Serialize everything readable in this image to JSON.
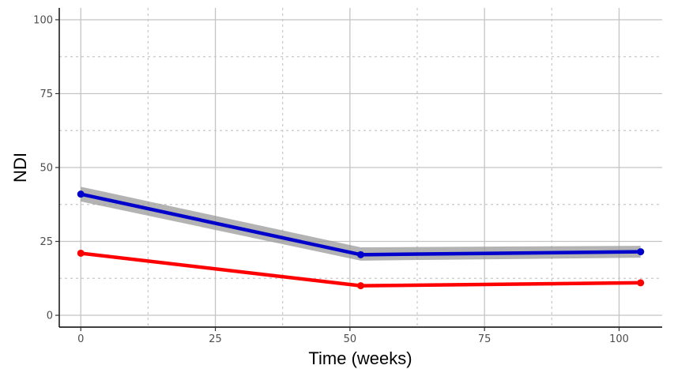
{
  "chart_data": {
    "type": "line",
    "title": "",
    "xlabel": "Time (weeks)",
    "ylabel": "NDI",
    "xlim": [
      -4,
      108
    ],
    "ylim": [
      -4,
      104
    ],
    "x_ticks": [
      "0",
      "25",
      "50",
      "75",
      "100"
    ],
    "y_ticks": [
      "0",
      "25",
      "50",
      "75",
      "100"
    ],
    "grid": true,
    "legend": "none",
    "series": [
      {
        "color": "#0000cc",
        "x": [
          0,
          52,
          104
        ],
        "y": [
          41,
          20.5,
          21.5
        ],
        "ci_lower": [
          38.5,
          18.5,
          19.5
        ],
        "ci_upper": [
          43.5,
          23,
          23.5
        ],
        "ci_color": "#9a9a9a"
      },
      {
        "color": "#ff0000",
        "x": [
          0,
          52,
          104
        ],
        "y": [
          21,
          10,
          11
        ]
      }
    ]
  }
}
